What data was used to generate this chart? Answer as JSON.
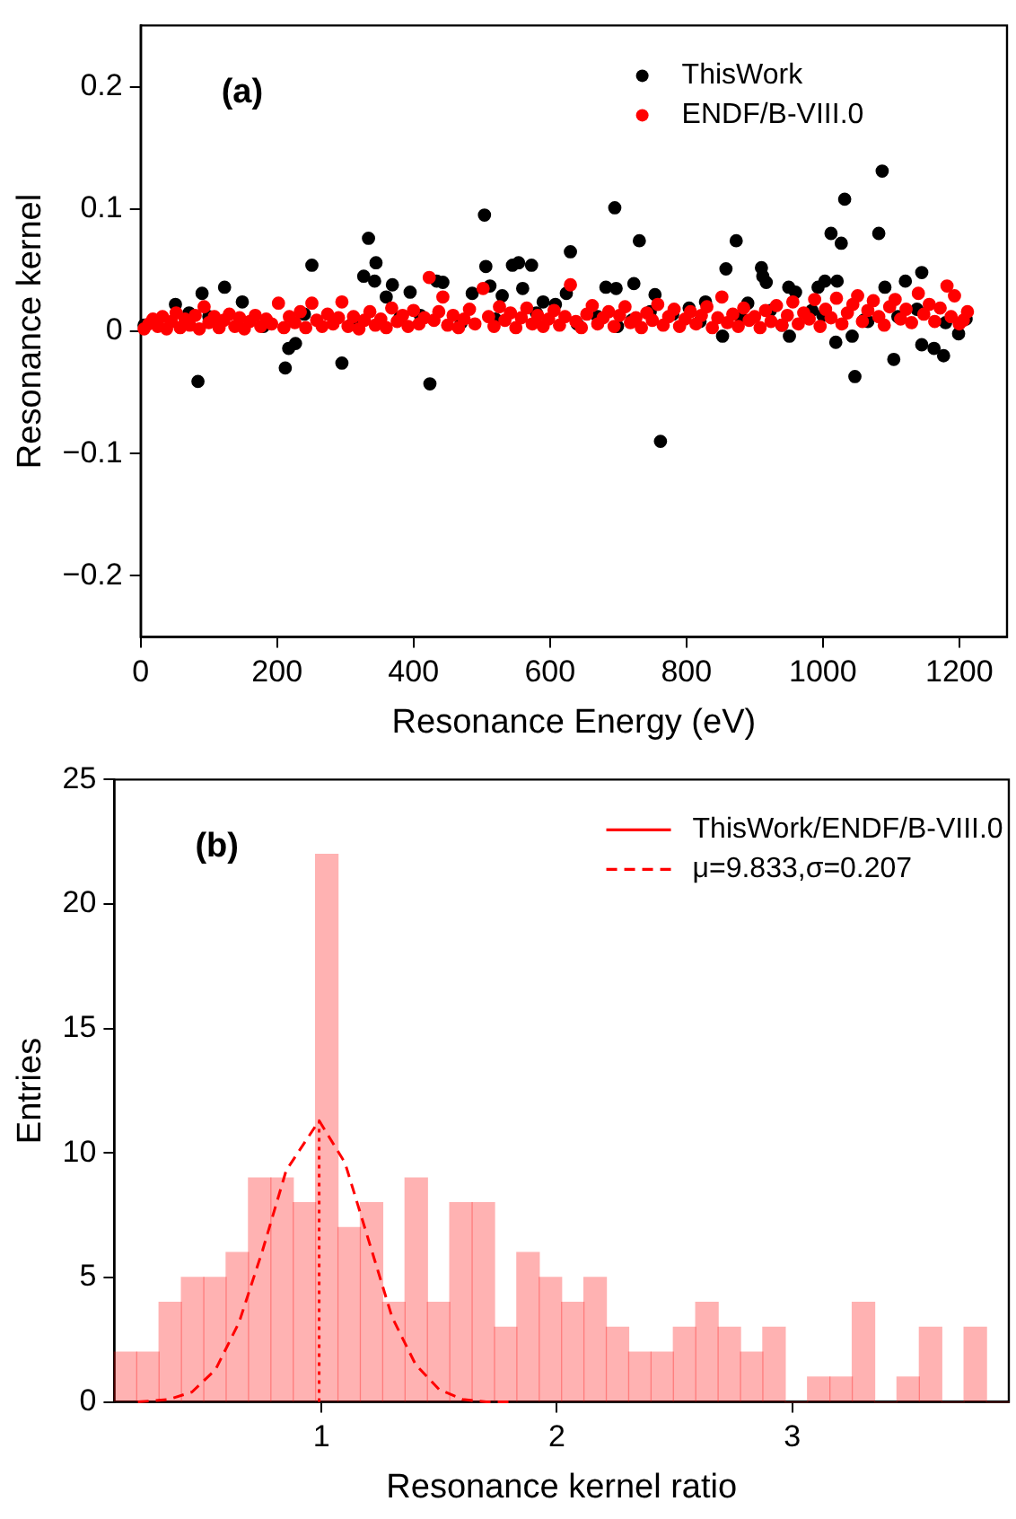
{
  "chart_data": [
    {
      "type": "scatter",
      "annotations": [
        "(a)"
      ],
      "xlabel": "Resonance Energy (eV)",
      "ylabel": "Resonance kernel",
      "xlim": [
        0,
        1270
      ],
      "xticks": [
        0,
        200,
        400,
        600,
        800,
        1000,
        1200
      ],
      "ylim": [
        -0.25,
        0.25
      ],
      "yticks": [
        {
          "value": -0.2,
          "label": "−0.2"
        },
        {
          "value": -0.1,
          "label": "−0.1"
        },
        0,
        0.1,
        0.2
      ],
      "legend": "top right",
      "marker": "circle",
      "series": [
        {
          "name": "ThisWork",
          "color": "#000000",
          "x": [
            51,
            71,
            84,
            90,
            123,
            149,
            212,
            217,
            227,
            251,
            295,
            327,
            334,
            345,
            343,
            369,
            360,
            395,
            424,
            434,
            443,
            486,
            504,
            506,
            512,
            530,
            545,
            554,
            560,
            573,
            590,
            608,
            624,
            630,
            695,
            731,
            682,
            697,
            723,
            754,
            762,
            699,
            747,
            804,
            828,
            853,
            858,
            873,
            890,
            910,
            912,
            917,
            923,
            950,
            960,
            951,
            984,
            993,
            1003,
            1021,
            1012,
            1027,
            1032,
            1019,
            1043,
            1047,
            1066,
            1082,
            1087,
            1091,
            1104,
            1121,
            1145,
            1138,
            1145,
            1163,
            1177,
            1199,
            5,
            100,
            180,
            240,
            310,
            380,
            410,
            470,
            520,
            580,
            640,
            670,
            720,
            780,
            820,
            880,
            940,
            1000,
            1060,
            1110,
            1180,
            1210
          ],
          "values": [
            0.022,
            0.015,
            -0.041,
            0.031,
            0.036,
            0.024,
            -0.03,
            -0.014,
            -0.01,
            0.054,
            -0.026,
            0.045,
            0.076,
            0.056,
            0.041,
            0.038,
            0.028,
            0.032,
            -0.043,
            0.041,
            0.04,
            0.031,
            0.095,
            0.053,
            0.037,
            0.029,
            0.054,
            0.056,
            0.035,
            0.054,
            0.024,
            0.022,
            0.031,
            0.065,
            0.101,
            0.074,
            0.036,
            0.035,
            0.039,
            0.03,
            -0.09,
            0.004,
            0.016,
            0.019,
            0.024,
            -0.004,
            0.051,
            0.074,
            0.023,
            0.052,
            0.045,
            0.04,
            0.017,
            0.036,
            0.032,
            -0.004,
            0.017,
            0.036,
            0.041,
            0.041,
            0.08,
            0.072,
            0.108,
            -0.009,
            -0.004,
            -0.037,
            0.008,
            0.08,
            0.131,
            0.036,
            -0.023,
            0.041,
            0.048,
            0.018,
            -0.011,
            -0.014,
            -0.02,
            -0.002,
            0.005,
            0.012,
            0.004,
            0.014,
            0.006,
            0.011,
            0.013,
            0.007,
            0.01,
            0.015,
            0.006,
            0.012,
            0.009,
            0.014,
            0.008,
            0.011,
            0.005,
            0.013,
            0.009,
            0.012,
            0.007,
            0.01
          ]
        },
        {
          "name": "ENDF/B-VIII.0",
          "color": "#ff0000",
          "x": [
            5,
            12,
            18,
            25,
            32,
            38,
            45,
            52,
            58,
            65,
            72,
            80,
            86,
            93,
            100,
            108,
            115,
            122,
            130,
            138,
            145,
            152,
            160,
            168,
            176,
            184,
            192,
            202,
            210,
            218,
            226,
            234,
            242,
            251,
            258,
            266,
            274,
            282,
            290,
            295,
            304,
            312,
            320,
            328,
            336,
            344,
            352,
            360,
            368,
            376,
            384,
            392,
            400,
            408,
            416,
            423,
            430,
            437,
            443,
            450,
            458,
            466,
            474,
            482,
            490,
            502,
            510,
            518,
            526,
            534,
            542,
            550,
            558,
            566,
            574,
            582,
            590,
            598,
            606,
            614,
            622,
            630,
            638,
            646,
            654,
            662,
            670,
            678,
            686,
            694,
            702,
            710,
            718,
            726,
            734,
            742,
            750,
            758,
            766,
            774,
            782,
            790,
            798,
            806,
            814,
            822,
            830,
            838,
            846,
            852,
            860,
            868,
            876,
            884,
            892,
            900,
            908,
            916,
            924,
            932,
            940,
            948,
            956,
            964,
            972,
            980,
            988,
            996,
            1004,
            1012,
            1020,
            1028,
            1036,
            1044,
            1051,
            1058,
            1066,
            1074,
            1082,
            1090,
            1098,
            1106,
            1114,
            1122,
            1130,
            1140,
            1148,
            1156,
            1164,
            1172,
            1182,
            1188,
            1193,
            1200,
            1206,
            1212
          ],
          "values": [
            0.002,
            0.006,
            0.01,
            0.004,
            0.012,
            0.002,
            0.008,
            0.015,
            0.003,
            0.01,
            0.005,
            0.013,
            0.002,
            0.02,
            0.007,
            0.012,
            0.003,
            0.009,
            0.014,
            0.004,
            0.011,
            0.002,
            0.008,
            0.013,
            0.004,
            0.01,
            0.006,
            0.023,
            0.003,
            0.012,
            0.007,
            0.016,
            0.003,
            0.023,
            0.009,
            0.004,
            0.014,
            0.006,
            0.011,
            0.024,
            0.004,
            0.012,
            0.002,
            0.009,
            0.016,
            0.005,
            0.01,
            0.003,
            0.019,
            0.008,
            0.013,
            0.004,
            0.017,
            0.006,
            0.011,
            0.044,
            0.009,
            0.016,
            0.028,
            0.005,
            0.013,
            0.003,
            0.01,
            0.018,
            0.006,
            0.035,
            0.012,
            0.004,
            0.02,
            0.009,
            0.015,
            0.003,
            0.011,
            0.019,
            0.006,
            0.013,
            0.004,
            0.01,
            0.017,
            0.005,
            0.012,
            0.038,
            0.008,
            0.003,
            0.014,
            0.021,
            0.006,
            0.011,
            0.016,
            0.004,
            0.013,
            0.02,
            0.007,
            0.011,
            0.003,
            0.015,
            0.009,
            0.022,
            0.005,
            0.012,
            0.018,
            0.004,
            0.01,
            0.016,
            0.006,
            0.013,
            0.02,
            0.003,
            0.011,
            0.028,
            0.007,
            0.014,
            0.004,
            0.019,
            0.009,
            0.012,
            0.003,
            0.017,
            0.008,
            0.021,
            0.005,
            0.013,
            0.024,
            0.006,
            0.015,
            0.01,
            0.026,
            0.004,
            0.018,
            0.011,
            0.027,
            0.006,
            0.015,
            0.022,
            0.029,
            0.008,
            0.017,
            0.025,
            0.012,
            0.005,
            0.02,
            0.026,
            0.01,
            0.018,
            0.007,
            0.031,
            0.014,
            0.022,
            0.008,
            0.019,
            0.037,
            0.012,
            0.029,
            0.006,
            0.009,
            0.016
          ]
        }
      ]
    },
    {
      "type": "histogram",
      "annotations": [
        "(b)"
      ],
      "xlabel": "Resonance kernel ratio",
      "ylabel": "Entries",
      "xlim": [
        0.12,
        3.92
      ],
      "xticks": [
        1,
        2,
        3
      ],
      "ylim": [
        0,
        25
      ],
      "yticks": [
        0,
        5,
        10,
        15,
        20,
        25
      ],
      "legend": "top right",
      "bins": [
        0.12,
        0.215,
        0.31,
        0.405,
        0.5,
        0.595,
        0.69,
        0.785,
        0.88,
        0.975,
        1.07,
        1.165,
        1.26,
        1.355,
        1.45,
        1.545,
        1.64,
        1.735,
        1.83,
        1.925,
        2.02,
        2.115,
        2.21,
        2.305,
        2.4,
        2.495,
        2.59,
        2.685,
        2.78,
        2.875,
        2.97,
        3.065,
        3.16,
        3.255,
        3.35,
        3.445,
        3.54,
        3.635,
        3.73,
        3.825,
        3.92
      ],
      "series": [
        {
          "name": "ThisWork/ENDF/B-VIII.0",
          "color": "#ff0000",
          "values": [
            2,
            2,
            4,
            5,
            5,
            6,
            9,
            9,
            8,
            22,
            7,
            8,
            4,
            9,
            4,
            8,
            8,
            3,
            6,
            5,
            4,
            5,
            3,
            2,
            2,
            3,
            4,
            3,
            2,
            3,
            0,
            1,
            1,
            4,
            0,
            1,
            3,
            0,
            3,
            0
          ]
        },
        {
          "type": "line",
          "name": "μ=9.833,σ=0.207",
          "color": "#ff0000",
          "line_style": "dashed",
          "x": [
            0.22,
            0.35,
            0.45,
            0.55,
            0.65,
            0.75,
            0.85,
            0.99,
            1.1,
            1.2,
            1.3,
            1.4,
            1.5,
            1.6,
            1.7,
            1.8
          ],
          "values": [
            0.0,
            0.1,
            0.4,
            1.3,
            3.2,
            6.1,
            9.3,
            11.3,
            9.6,
            6.5,
            3.4,
            1.5,
            0.5,
            0.1,
            0.0,
            0.0
          ]
        },
        {
          "type": "line",
          "color": "#ff0000",
          "line_style": "dotted",
          "x": [
            0.99,
            0.99
          ],
          "values": [
            0,
            11.3
          ]
        }
      ]
    }
  ]
}
